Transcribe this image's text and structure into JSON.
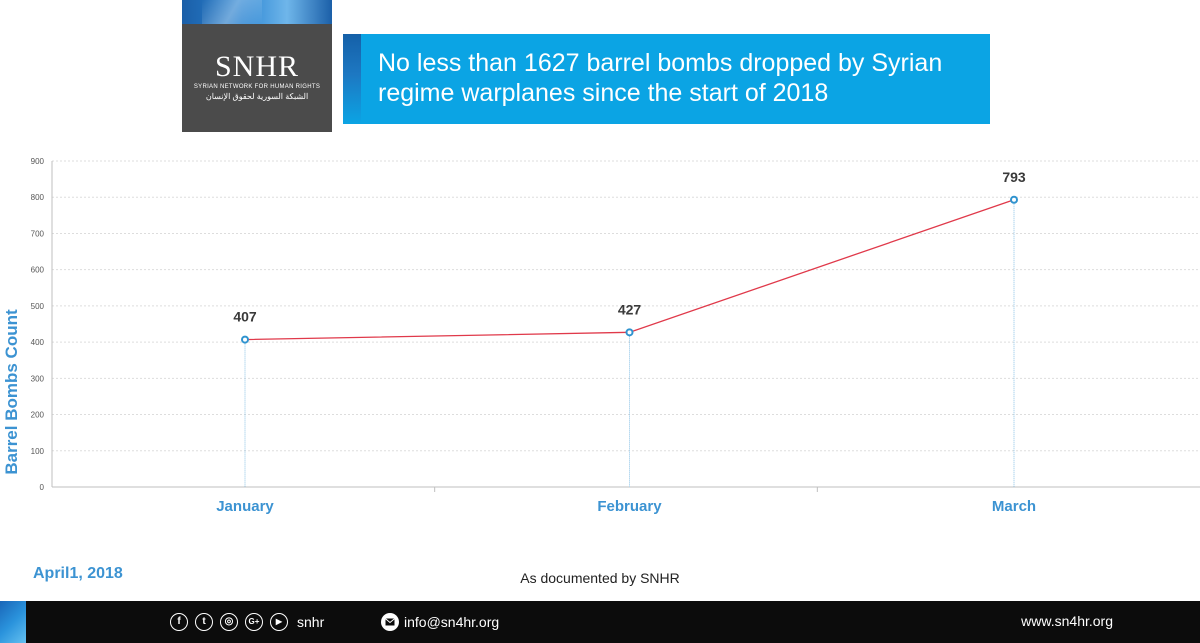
{
  "logo": {
    "mark": "SNHR",
    "subtitle_en": "SYRIAN NETWORK FOR HUMAN RIGHTS",
    "subtitle_ar": "الشبكة السورية لحقوق الإنسان"
  },
  "banner": {
    "title": "No less than 1627 barrel bombs dropped by Syrian regime warplanes since the start of 2018",
    "color": "#0ba4e4"
  },
  "chart_data": {
    "type": "line",
    "title": "",
    "xlabel": "",
    "ylabel": "Barrel Bombs Count",
    "categories": [
      "January",
      "February",
      "March"
    ],
    "series": [
      {
        "values": [
          407,
          427,
          793
        ],
        "color": "#e0394a",
        "marker_color": "#2f93cf"
      }
    ],
    "data_labels": [
      "407",
      "427",
      "793"
    ],
    "ylim": [
      0,
      900
    ],
    "yticks": [
      0,
      100,
      200,
      300,
      400,
      500,
      600,
      700,
      800,
      900
    ],
    "grid": true,
    "legend": "none"
  },
  "footer": {
    "date": "April1, 2018",
    "source": "As documented by SNHR"
  },
  "bottombar": {
    "social_icons": [
      {
        "icon": "facebook-icon",
        "glyph": "f"
      },
      {
        "icon": "twitter-icon",
        "glyph": "t"
      },
      {
        "icon": "instagram-icon",
        "glyph": "◎"
      },
      {
        "icon": "google-plus-icon",
        "glyph": "G+"
      },
      {
        "icon": "youtube-icon",
        "glyph": "▶"
      }
    ],
    "handle": "snhr",
    "email": "info@sn4hr.org",
    "website": "www.sn4hr.org"
  }
}
